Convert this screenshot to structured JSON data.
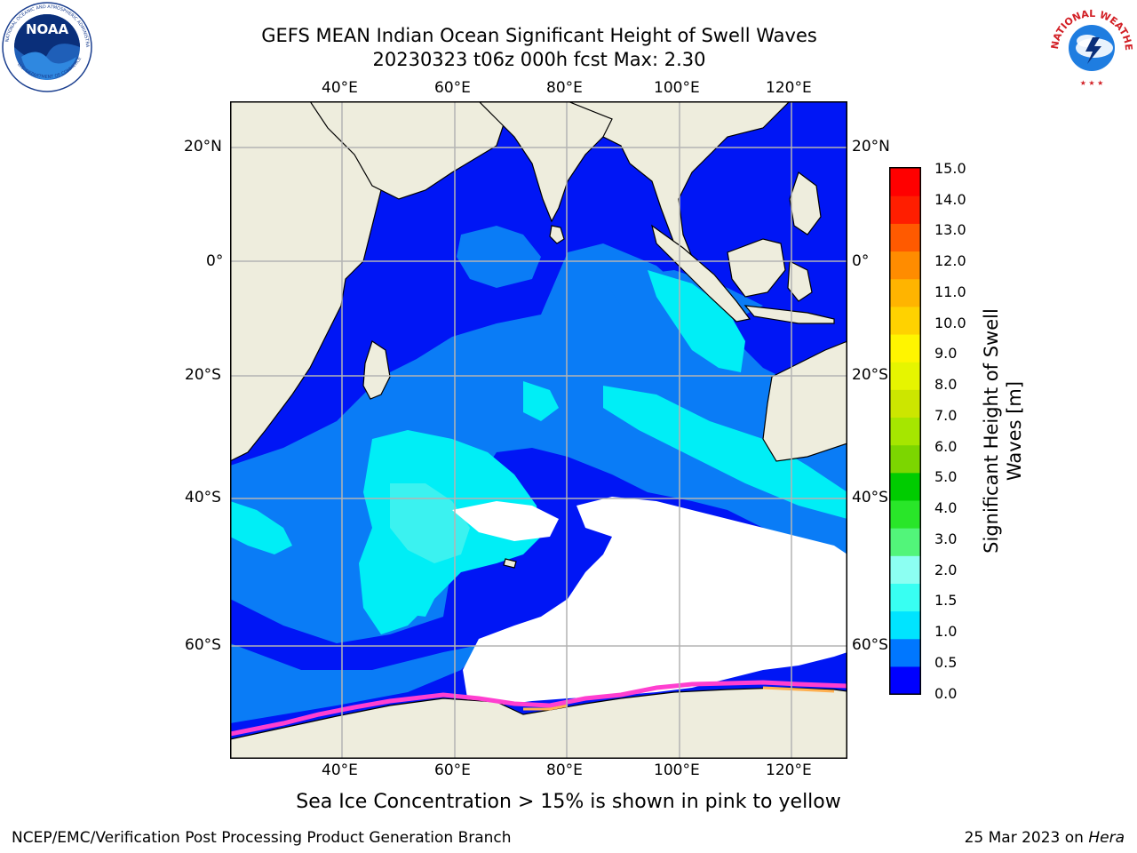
{
  "header": {
    "title_line1": "GEFS MEAN Indian Ocean Significant Height of Swell Waves",
    "title_line2": "20230323 t06z 000h fcst   Max: 2.30"
  },
  "logos": {
    "left": {
      "name": "NOAA",
      "ring_text": "NATIONAL OCEANIC AND ATMOSPHERIC ADMINISTRATION",
      "lower_text": "U.S. DEPARTMENT OF COMMERCE"
    },
    "right": {
      "name": "NATIONAL WEATHER SERVICE"
    }
  },
  "map": {
    "lon_ticks": [
      "40°E",
      "60°E",
      "80°E",
      "100°E",
      "120°E"
    ],
    "lat_ticks": [
      "20°N",
      "0°",
      "20°S",
      "40°S",
      "60°S"
    ],
    "colors": {
      "land": "#eeeddd",
      "ocean_low": "#0016f5",
      "ocean_mid": "#0a7cf6",
      "ocean_high": "#00eef6",
      "ocean_high2": "#3bf2f0",
      "sea_ice": "#ffffff",
      "ice_edge": "#ff3fd0",
      "ice_edge_warm": "#ffb050",
      "grid": "#b4b4b4"
    }
  },
  "colorbar": {
    "title_line1": "Significant Height of Swell",
    "title_line2": "Waves [m]",
    "labels": [
      "15.0",
      "14.0",
      "13.0",
      "12.0",
      "11.0",
      "10.0",
      "9.0",
      "8.0",
      "7.0",
      "6.0",
      "5.0",
      "4.0",
      "3.0",
      "2.0",
      "1.5",
      "1.0",
      "0.5",
      "0.0"
    ],
    "colors": [
      "#0000ff",
      "#0077ff",
      "#00e4ff",
      "#38fff2",
      "#8cfff2",
      "#52f57a",
      "#29e629",
      "#00cc00",
      "#7cd600",
      "#a6e600",
      "#cce600",
      "#e6f500",
      "#fff500",
      "#ffd200",
      "#ffb400",
      "#ff8c00",
      "#ff5a00",
      "#ff1e00",
      "#ff0000"
    ]
  },
  "footer": {
    "note": "Sea Ice Concentration > 15% is shown in pink to yellow",
    "left": "NCEP/EMC/Verification Post Processing Product Generation Branch",
    "right_date": "25 Mar 2023 on ",
    "right_machine": "Hera"
  }
}
